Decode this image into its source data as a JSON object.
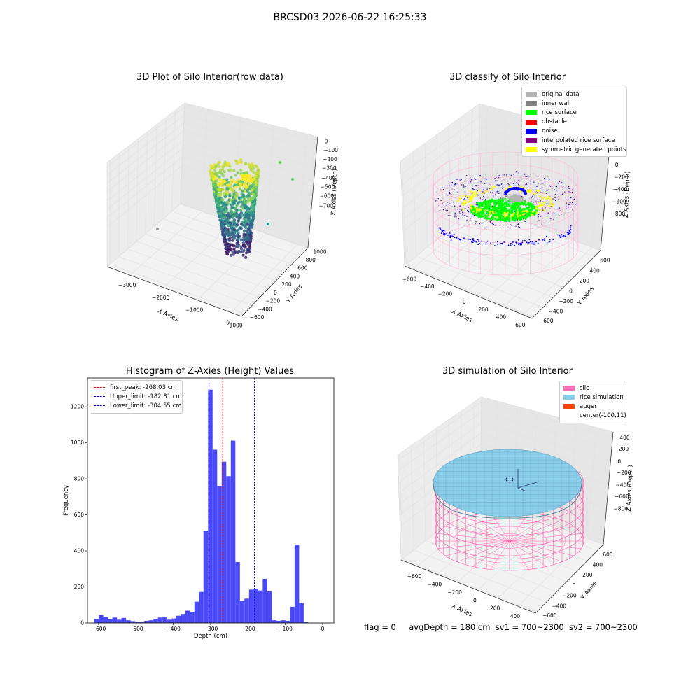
{
  "suptitle": "BRCSD03 2026-06-22 16:25:33",
  "footer": {
    "flag": "flag = 0",
    "avg_depth": "avgDepth = 180 cm",
    "sv1": "sv1 = 700~2300",
    "sv2": "sv2 = 700~2300"
  },
  "colors": {
    "original_data": "#b4b4b4",
    "inner_wall": "#808080",
    "rice_surface": "#00ff00",
    "obstacle": "#ff0000",
    "noise": "#0000ff",
    "interpolated_rice_surface": "#800080",
    "symmetric_generated_points": "#ffff00",
    "silo": "#ff69b4",
    "rice_simulation": "#87ceeb",
    "auger": "#ff4500",
    "histogram_bar": "#4a4af6",
    "first_peak_line": "#ff0000",
    "limit_lines": "#0000ff"
  },
  "chart_data": [
    {
      "type": "scatter",
      "projection": "3d",
      "title": "3D Plot of Silo Interior(row data)",
      "xlabel": "X Axies",
      "ylabel": "Y Axies",
      "zlabel": "Z Axies (Depth)",
      "xticks": [
        "−3000",
        "−2000",
        "−1000",
        "0",
        "1000"
      ],
      "yticks": [
        "−600",
        "−400",
        "−200",
        "0",
        "200",
        "400",
        "600",
        "800",
        "1000"
      ],
      "zticks": [
        "0",
        "−100",
        "−200",
        "−300",
        "−400",
        "−500",
        "−600",
        "−700"
      ],
      "colormap": "viridis",
      "xlim": [
        -3600,
        1000
      ],
      "ylim": [
        -650,
        1050
      ],
      "zlim": [
        -760,
        20
      ],
      "point_count_estimate": 9000
    },
    {
      "type": "scatter",
      "projection": "3d",
      "title": "3D classify of Silo Interior",
      "xlabel": "X Axies",
      "ylabel": "Y Axies",
      "zlabel": "Z Axies (Depth)",
      "xticks": [
        "−600",
        "−400",
        "−200",
        "0",
        "200",
        "400",
        "600"
      ],
      "yticks": [
        "−600",
        "−400",
        "−200",
        "0",
        "200",
        "400",
        "600"
      ],
      "zticks": [
        "200",
        "0",
        "−200",
        "−400",
        "−600",
        "−800"
      ],
      "legend": [
        "original data",
        "inner wall",
        "rice surface",
        "obstacle",
        "noise",
        "interpolated rice surface",
        "symmetric generated points"
      ],
      "legend_position": "upper right"
    },
    {
      "type": "bar",
      "title": "Histogram of Z-Axies (Height) Values",
      "xlabel": "Depth (cm)",
      "ylabel": "Frequency",
      "xlim": [
        -630,
        30
      ],
      "ylim": [
        0,
        1360
      ],
      "xticks": [
        "−600",
        "−500",
        "−400",
        "−300",
        "−200",
        "−100",
        "0"
      ],
      "yticks": [
        "0",
        "200",
        "400",
        "600",
        "800",
        "1000",
        "1200"
      ],
      "bins_start": -612,
      "bin_width": 12.2,
      "values": [
        22,
        45,
        35,
        20,
        30,
        18,
        28,
        15,
        10,
        8,
        8,
        12,
        15,
        22,
        30,
        35,
        18,
        25,
        40,
        50,
        68,
        62,
        118,
        172,
        512,
        1295,
        962,
        760,
        895,
        815,
        1012,
        338,
        122,
        135,
        185,
        190,
        180,
        245,
        175,
        15,
        12,
        15,
        12,
        90,
        435,
        110,
        5
      ],
      "vlines": [
        {
          "label": "first_peak: -268.03 cm",
          "x": -268.03,
          "color": "red"
        },
        {
          "label": "Upper_limit: -182.81 cm",
          "x": -182.81,
          "color": "blue"
        },
        {
          "label": "Lower_limit: -304.55 cm",
          "x": -304.55,
          "color": "blue"
        }
      ],
      "legend_position": "upper left"
    },
    {
      "type": "surface",
      "projection": "3d",
      "title": "3D simulation of Silo Interior",
      "xlabel": "X Axies",
      "ylabel": "Y Axies",
      "zlabel": "Z Axies (Depth)",
      "xticks": [
        "−600",
        "−400",
        "−200",
        "0",
        "200",
        "400"
      ],
      "yticks": [
        "−600",
        "−400",
        "−200",
        "0",
        "200",
        "400",
        "600"
      ],
      "zticks": [
        "400",
        "200",
        "0",
        "−200",
        "−400",
        "−600",
        "−800"
      ],
      "legend": [
        "silo",
        "rice simulation",
        "auger",
        "center(-100,11)"
      ],
      "legend_position": "upper right"
    }
  ]
}
